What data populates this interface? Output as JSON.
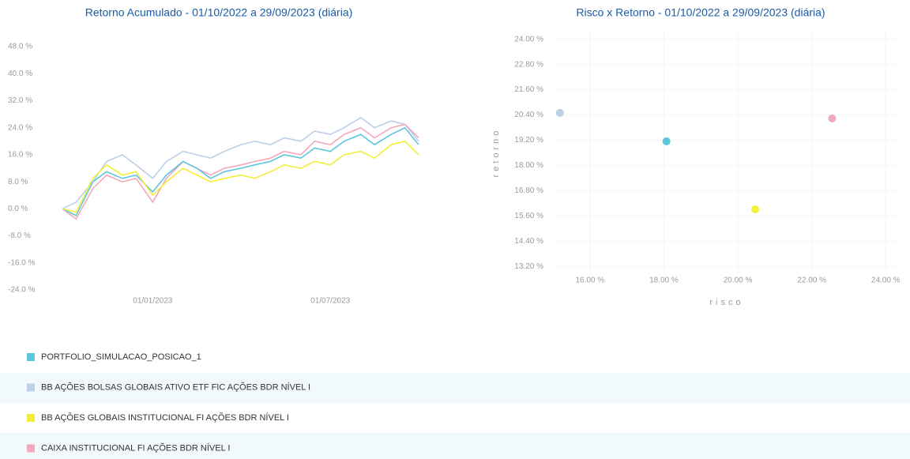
{
  "chart_data": [
    {
      "type": "line",
      "title": "Retorno Acumulado - 01/10/2022 a 29/09/2023 (diária)",
      "x": [
        "01/10/2022",
        "15/10/2022",
        "01/11/2022",
        "15/11/2022",
        "01/12/2022",
        "15/12/2022",
        "01/01/2023",
        "15/01/2023",
        "01/02/2023",
        "15/02/2023",
        "01/03/2023",
        "15/03/2023",
        "01/04/2023",
        "15/04/2023",
        "01/05/2023",
        "15/05/2023",
        "01/06/2023",
        "15/06/2023",
        "01/07/2023",
        "15/07/2023",
        "01/08/2023",
        "15/08/2023",
        "01/09/2023",
        "15/09/2023",
        "29/09/2023"
      ],
      "xlim": [
        "01/10/2022",
        "29/09/2023"
      ],
      "xticks": [
        "01/01/2023",
        "01/07/2023"
      ],
      "ylim": [
        -24,
        48
      ],
      "yticks": [
        {
          "value": 48,
          "label": "48.0 %"
        },
        {
          "value": 40,
          "label": "40.0 %"
        },
        {
          "value": 32,
          "label": "32.0 %"
        },
        {
          "value": 24,
          "label": "24.0 %"
        },
        {
          "value": 16,
          "label": "16.0 %"
        },
        {
          "value": 8,
          "label": "8.0 %"
        },
        {
          "value": 0,
          "label": "0.0 %"
        },
        {
          "value": -8,
          "label": "-8.0 %"
        },
        {
          "value": -16,
          "label": "-16.0 %"
        },
        {
          "value": -24,
          "label": "-24.0 %"
        }
      ],
      "series": [
        {
          "name": "PORTFOLIO_SIMULACAO_POSICAO_1",
          "color": "#5cc6df",
          "values": [
            0,
            -2,
            8,
            11,
            9,
            10,
            5,
            10,
            14,
            12,
            9,
            11,
            12,
            13,
            14,
            16,
            15,
            18,
            17,
            20,
            22,
            19,
            22,
            24,
            19
          ]
        },
        {
          "name": "BB AÇÕES BOLSAS GLOBAIS ATIVO ETF FIC AÇÕES BDR NÍVEL I",
          "color": "#bccfe8",
          "values": [
            0,
            2,
            8,
            14,
            16,
            13,
            9,
            14,
            17,
            16,
            15,
            17,
            19,
            20,
            19,
            21,
            20,
            23,
            22,
            24,
            27,
            24,
            26,
            25,
            20
          ]
        },
        {
          "name": "BB AÇÕES GLOBAIS INSTITUCIONAL FI AÇÕES BDR NÍVEL I",
          "color": "#f4ee3a",
          "values": [
            0,
            -1,
            9,
            13,
            10,
            11,
            4,
            8,
            12,
            10,
            8,
            9,
            10,
            9,
            11,
            13,
            12,
            14,
            13,
            16,
            17,
            15,
            19,
            20,
            16
          ]
        },
        {
          "name": "CAIXA INSTITUCIONAL FI AÇÕES BDR NÍVEL I",
          "color": "#f2a9be",
          "values": [
            0,
            -3,
            6,
            10,
            8,
            9,
            2,
            9,
            14,
            12,
            10,
            12,
            13,
            14,
            15,
            17,
            16,
            20,
            19,
            22,
            24,
            21,
            24,
            25,
            21
          ]
        }
      ]
    },
    {
      "type": "scatter",
      "title": "Risco x Retorno - 01/10/2022 a 29/09/2023 (diária)",
      "xlabel": "risco",
      "ylabel": "retorno",
      "grid": true,
      "xlim": [
        15,
        24.4
      ],
      "ylim": [
        12.8,
        24.4
      ],
      "xticks": [
        {
          "value": 16,
          "label": "16.00 %"
        },
        {
          "value": 18,
          "label": "18.00 %"
        },
        {
          "value": 20,
          "label": "20.00 %"
        },
        {
          "value": 22,
          "label": "22.00 %"
        },
        {
          "value": 24,
          "label": "24.00 %"
        }
      ],
      "yticks": [
        {
          "value": 24,
          "label": "24.00 %"
        },
        {
          "value": 22.8,
          "label": "22.80 %"
        },
        {
          "value": 21.6,
          "label": "21.60 %"
        },
        {
          "value": 20.4,
          "label": "20.40 %"
        },
        {
          "value": 19.2,
          "label": "19.20 %"
        },
        {
          "value": 18,
          "label": "18.00 %"
        },
        {
          "value": 16.8,
          "label": "16.80 %"
        },
        {
          "value": 15.6,
          "label": "15.60 %"
        },
        {
          "value": 14.4,
          "label": "14.40 %"
        },
        {
          "value": 13.2,
          "label": "13.20 %"
        }
      ],
      "points": [
        {
          "color": "#5cc6df",
          "x": 18.07,
          "y": 19.15
        },
        {
          "color": "#bccfe8",
          "x": 15.19,
          "y": 20.5
        },
        {
          "color": "#f4ee3a",
          "x": 20.47,
          "y": 15.92
        },
        {
          "color": "#f2a9be",
          "x": 22.55,
          "y": 20.24
        }
      ]
    }
  ]
}
